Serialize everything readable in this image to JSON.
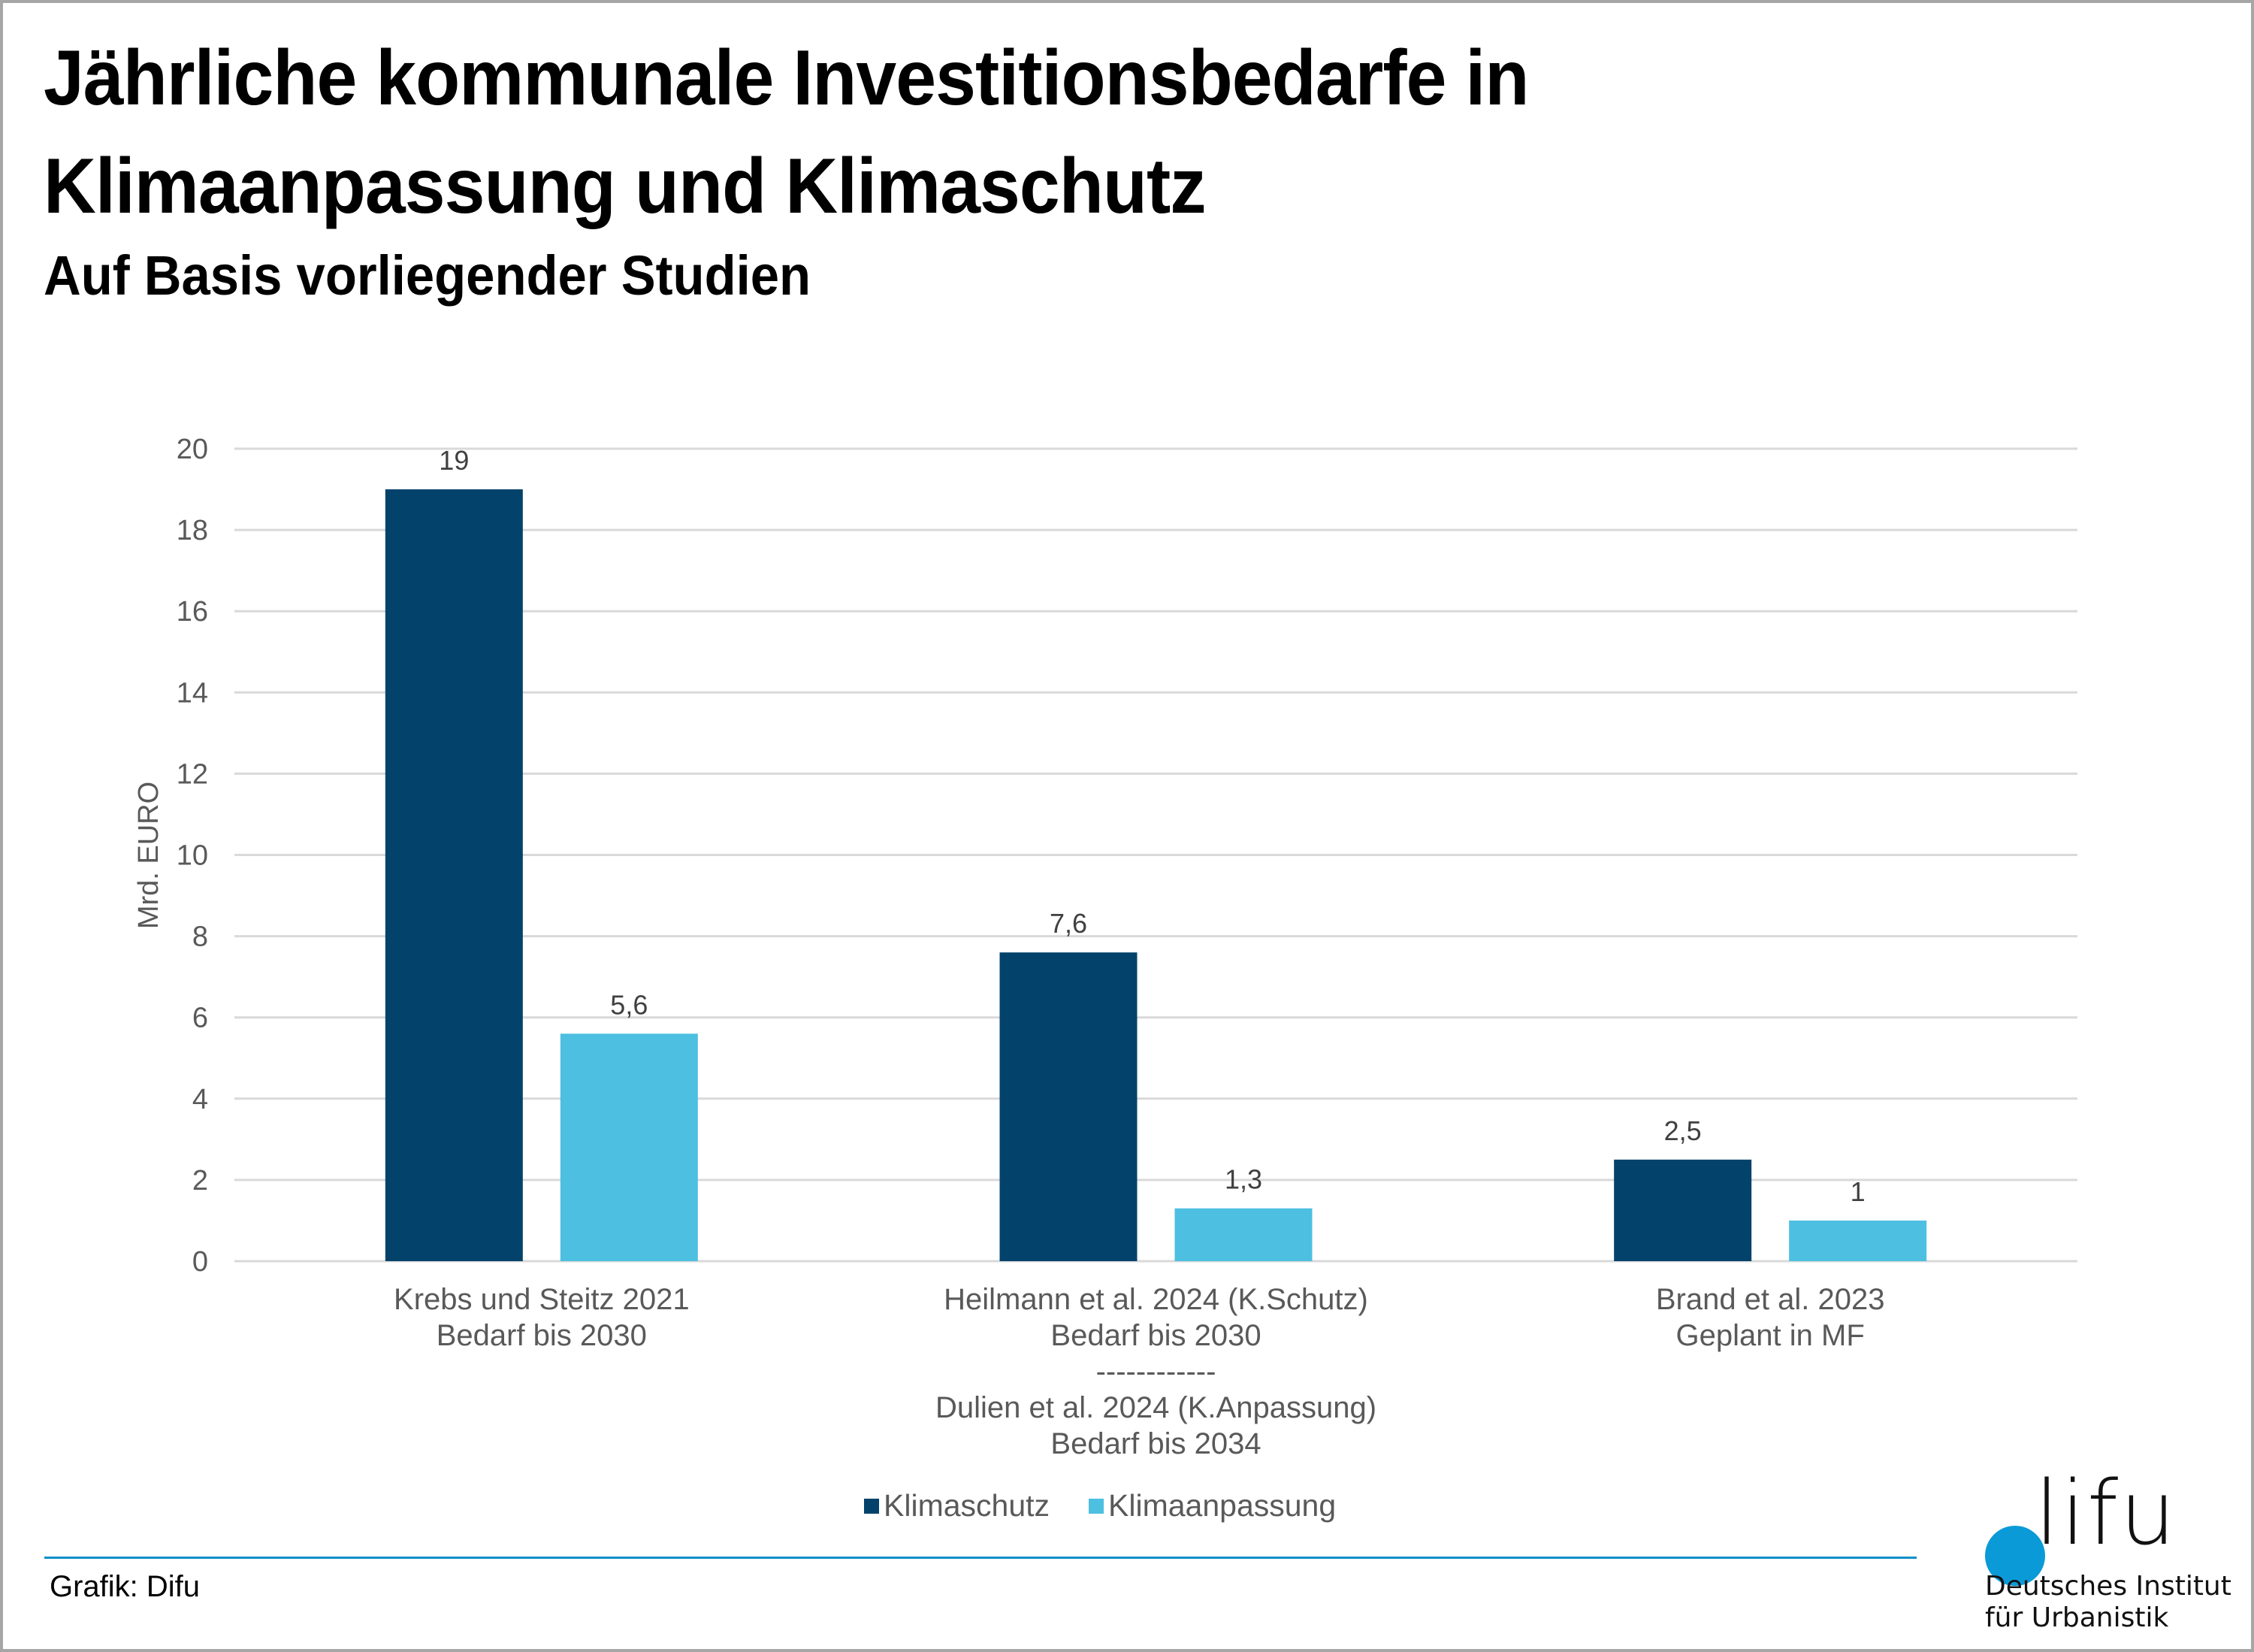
{
  "header": {
    "title_line1": "Jährliche kommunale Investitionsbedarfe in",
    "title_line2": "Klimaanpassung und Klimaschutz",
    "subtitle": "Auf Basis vorliegender Studien"
  },
  "chart_data": {
    "type": "bar",
    "title": "Jährliche kommunale Investitionsbedarfe in Klimaanpassung und Klimaschutz",
    "subtitle": "Auf Basis vorliegender Studien",
    "xlabel": "",
    "ylabel": "Mrd. EURO",
    "ylim": [
      0,
      20
    ],
    "yticks": [
      0,
      2,
      4,
      6,
      8,
      10,
      12,
      14,
      16,
      18,
      20
    ],
    "grid": true,
    "legend_position": "bottom",
    "categories": [
      [
        "Krebs und Steitz 2021",
        "Bedarf bis 2030"
      ],
      [
        "Heilmann et al. 2024 (K.Schutz)",
        "Bedarf bis 2030",
        "------------",
        "Dulien et al. 2024 (K.Anpassung)",
        "Bedarf bis 2034"
      ],
      [
        "Brand et al. 2023",
        "Geplant in MF"
      ]
    ],
    "series": [
      {
        "name": "Klimaschutz",
        "color": "#03436b",
        "values": [
          19,
          7.6,
          2.5
        ],
        "labels": [
          "19",
          "7,6",
          "2,5"
        ]
      },
      {
        "name": "Klimaanpassung",
        "color": "#4dbfe1",
        "values": [
          5.6,
          1.3,
          1
        ],
        "labels": [
          "5,6",
          "1,3",
          "1"
        ]
      }
    ]
  },
  "legend": {
    "items": [
      {
        "label": "Klimaschutz",
        "color": "#03436b"
      },
      {
        "label": "Klimaanpassung",
        "color": "#4dbfe1"
      }
    ]
  },
  "footer": {
    "source": "Grafik: Difu",
    "line_color": "#0b8fc7"
  },
  "logo": {
    "wordmark": "lifu",
    "dot_color": "#0a9ad8",
    "line1": "Deutsches Institut",
    "line2": "für Urbanistik"
  }
}
